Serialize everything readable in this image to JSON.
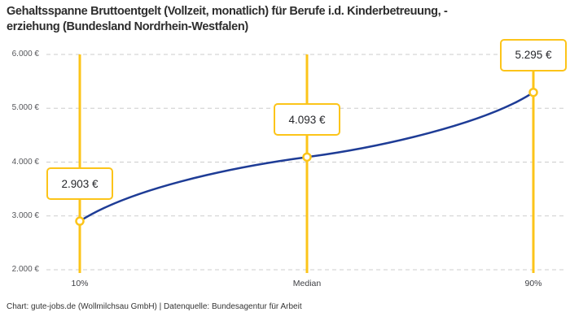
{
  "header": {
    "title_lines": [
      "Gehaltsspanne Bruttoentgelt (Vollzeit, monatlich) für Berufe i.d. Kinderbetreuung, -",
      "erziehung (Bundesland Nordrhein-Westfalen)"
    ]
  },
  "footer": {
    "credit": "Chart: gute-jobs.de (Wollmilchsau GmbH) | Datenquelle: Bundesagentur für Arbeit"
  },
  "chart_data": {
    "type": "line",
    "title": "Gehaltsspanne Bruttoentgelt (Vollzeit, monatlich) für Berufe i.d. Kinderbetreuung, -erziehung (Bundesland Nordrhein-Westfalen)",
    "categories": [
      "10%",
      "Median",
      "90%"
    ],
    "values": [
      2903,
      4093,
      5295
    ],
    "value_labels": [
      "2.903 €",
      "4.093 €",
      "5.295 €"
    ],
    "y_ticks": [
      6000,
      5000,
      4000,
      3000,
      2000
    ],
    "y_tick_labels": [
      "6.000 €",
      "5.000 €",
      "4.000 €",
      "3.000 €",
      "2.000 €"
    ],
    "ylim": [
      2000,
      6000
    ],
    "grid": "horizontal-dashed",
    "legend": "none",
    "marker": "open-circle",
    "line_color": "#1e3c96",
    "accent_color": "#fcc419",
    "grid_color": "#cdcdcd"
  }
}
